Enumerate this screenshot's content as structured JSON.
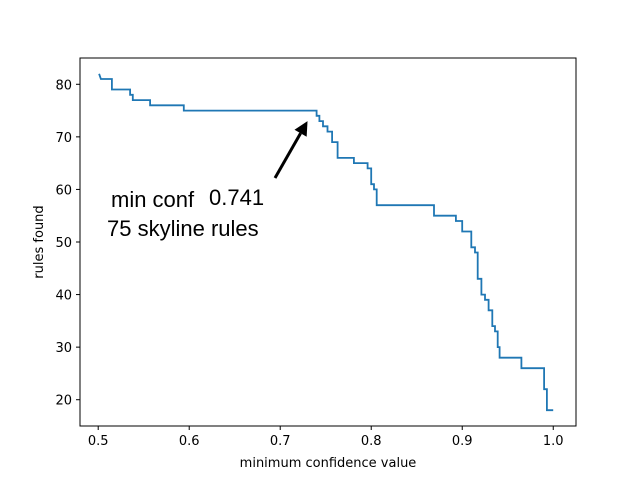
{
  "chart_data": {
    "type": "line",
    "title": "",
    "xlabel": "minimum confidence value",
    "ylabel": "rules found",
    "xlim": [
      0.48,
      1.025
    ],
    "ylim": [
      15,
      85
    ],
    "grid": false,
    "x_ticks": [
      0.5,
      0.6,
      0.7,
      0.8,
      0.9,
      1.0
    ],
    "x_tick_labels": [
      "0.5",
      "0.6",
      "0.7",
      "0.8",
      "0.9",
      "1.0"
    ],
    "y_ticks": [
      20,
      30,
      40,
      50,
      60,
      70,
      80
    ],
    "y_tick_labels": [
      "20",
      "30",
      "40",
      "50",
      "60",
      "70",
      "80"
    ],
    "series": [
      {
        "color": "#1f77b4",
        "step": true,
        "points": [
          [
            0.501,
            82
          ],
          [
            0.503,
            81
          ],
          [
            0.515,
            81
          ],
          [
            0.515,
            79
          ],
          [
            0.535,
            79
          ],
          [
            0.535,
            78
          ],
          [
            0.538,
            78
          ],
          [
            0.538,
            77
          ],
          [
            0.557,
            77
          ],
          [
            0.557,
            76
          ],
          [
            0.594,
            76
          ],
          [
            0.594,
            75
          ],
          [
            0.74,
            75
          ],
          [
            0.74,
            74
          ],
          [
            0.743,
            74
          ],
          [
            0.743,
            73
          ],
          [
            0.747,
            73
          ],
          [
            0.747,
            72
          ],
          [
            0.752,
            72
          ],
          [
            0.752,
            71
          ],
          [
            0.757,
            71
          ],
          [
            0.757,
            69
          ],
          [
            0.763,
            69
          ],
          [
            0.763,
            66
          ],
          [
            0.781,
            66
          ],
          [
            0.781,
            65
          ],
          [
            0.796,
            65
          ],
          [
            0.796,
            64
          ],
          [
            0.8,
            64
          ],
          [
            0.8,
            61
          ],
          [
            0.803,
            61
          ],
          [
            0.803,
            60
          ],
          [
            0.806,
            60
          ],
          [
            0.806,
            57
          ],
          [
            0.869,
            57
          ],
          [
            0.869,
            55
          ],
          [
            0.893,
            55
          ],
          [
            0.893,
            54
          ],
          [
            0.9,
            54
          ],
          [
            0.9,
            52
          ],
          [
            0.91,
            52
          ],
          [
            0.91,
            49
          ],
          [
            0.914,
            49
          ],
          [
            0.914,
            48
          ],
          [
            0.917,
            48
          ],
          [
            0.917,
            43
          ],
          [
            0.921,
            43
          ],
          [
            0.921,
            40
          ],
          [
            0.925,
            40
          ],
          [
            0.925,
            39
          ],
          [
            0.929,
            39
          ],
          [
            0.929,
            37
          ],
          [
            0.933,
            37
          ],
          [
            0.933,
            34
          ],
          [
            0.936,
            34
          ],
          [
            0.936,
            33
          ],
          [
            0.939,
            33
          ],
          [
            0.939,
            30
          ],
          [
            0.941,
            30
          ],
          [
            0.941,
            28
          ],
          [
            0.965,
            28
          ],
          [
            0.965,
            26
          ],
          [
            0.99,
            26
          ],
          [
            0.99,
            22
          ],
          [
            0.993,
            22
          ],
          [
            0.993,
            18
          ],
          [
            1.0,
            18
          ]
        ]
      }
    ],
    "annotation": {
      "text_line1": "min conf",
      "text_value": "0.741",
      "text_line2": "75 skyline rules",
      "target": [
        0.73,
        73
      ],
      "text_anchor": [
        0.52,
        57
      ]
    }
  }
}
